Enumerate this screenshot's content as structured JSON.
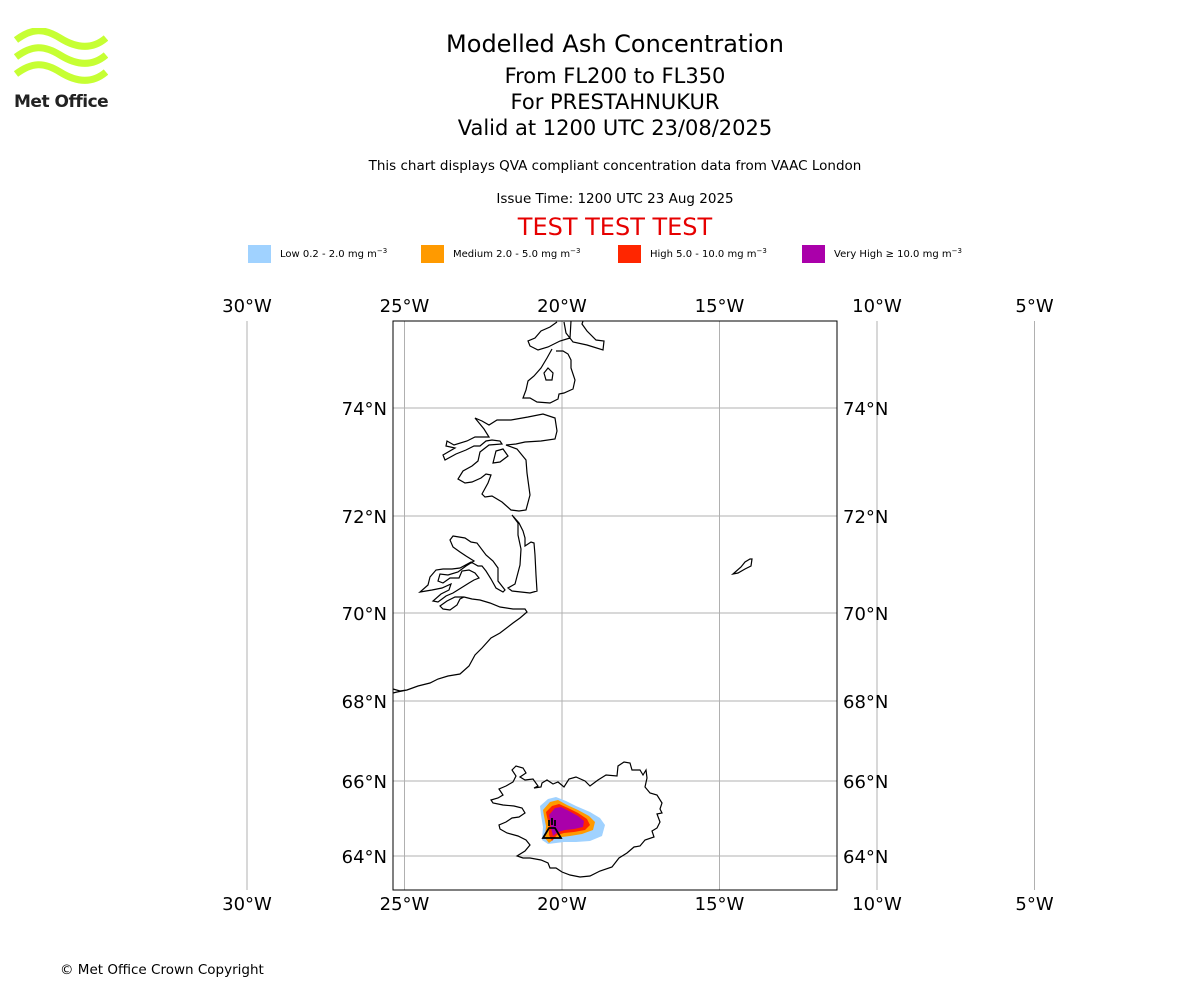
{
  "header": {
    "title": "Modelled Ash Concentration",
    "level_range": "From FL200 to FL350",
    "volcano_line": "For PRESTAHNUKUR",
    "valid_time": "Valid at 1200 UTC 23/08/2025",
    "description": "This chart displays QVA compliant concentration data from VAAC London",
    "issue_time": "Issue Time: 1200 UTC 23 Aug 2025",
    "test_banner": "TEST TEST TEST"
  },
  "logo": {
    "text": "Met Office",
    "color": "#c6ff33"
  },
  "legend": [
    {
      "label": "Low 0.2 - 2.0 mg m",
      "exp": "−3",
      "color": "#a0d2ff"
    },
    {
      "label": "Medium 2.0 - 5.0 mg m",
      "exp": "−3",
      "color": "#ff9a00"
    },
    {
      "label": "High 5.0 - 10.0 mg m",
      "exp": "−3",
      "color": "#ff2600"
    },
    {
      "label": "Very High  ≥  10.0 mg m",
      "exp": "−3",
      "color": "#aa00aa"
    }
  ],
  "map": {
    "lon_ticks": [
      {
        "lon": -30,
        "label": "30°W"
      },
      {
        "lon": -25,
        "label": "25°W"
      },
      {
        "lon": -20,
        "label": "20°W"
      },
      {
        "lon": -15,
        "label": "15°W"
      },
      {
        "lon": -10,
        "label": "10°W"
      },
      {
        "lon": -5,
        "label": "5°W"
      }
    ],
    "lat_ticks": [
      {
        "lat": 74,
        "label": "74°N"
      },
      {
        "lat": 72,
        "label": "72°N"
      },
      {
        "lat": 70,
        "label": "70°N"
      },
      {
        "lat": 68,
        "label": "68°N"
      },
      {
        "lat": 66,
        "label": "66°N"
      },
      {
        "lat": 64,
        "label": "64°N"
      }
    ],
    "volcano": {
      "lat": 64.6,
      "lon": -20.6
    }
  },
  "footer": {
    "copyright": "© Met Office Crown Copyright"
  }
}
